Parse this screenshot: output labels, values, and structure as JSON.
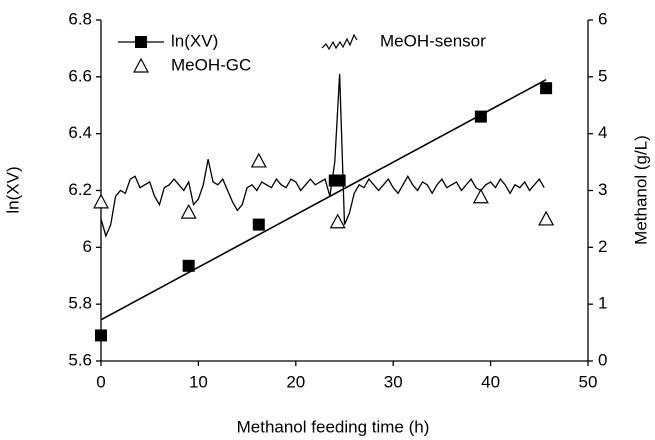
{
  "chart_data": {
    "type": "scatter",
    "x_label": "Methanol feeding time (h)",
    "y_label": "ln(XV)",
    "y2_label": "Methanol (g/L)",
    "xlim": [
      0,
      50
    ],
    "xticks": [
      0,
      10,
      20,
      30,
      40,
      50
    ],
    "ylim": [
      5.6,
      6.8
    ],
    "yticks": [
      5.6,
      5.8,
      6,
      6.2,
      6.4,
      6.6,
      6.8
    ],
    "y2lim": [
      0,
      6
    ],
    "y2ticks": [
      0,
      1,
      2,
      3,
      4,
      5,
      6
    ],
    "series": [
      {
        "name": "ln(XV)",
        "type": "scatter",
        "marker": "square",
        "color": "#000000",
        "x": [
          0,
          9,
          16.2,
          24,
          24.5,
          39,
          45.7
        ],
        "values": [
          5.69,
          5.935,
          6.08,
          6.235,
          6.235,
          6.46,
          6.56
        ]
      },
      {
        "type": "line",
        "color": "#000000",
        "x": [
          0,
          45.7
        ],
        "values": [
          5.745,
          6.59
        ]
      },
      {
        "name": "MeOH-GC",
        "type": "scatter",
        "marker": "triangle",
        "color": "#000000",
        "axis": "y2",
        "x": [
          0,
          9,
          16.2,
          24.3,
          39,
          45.7
        ],
        "values": [
          2.8,
          2.62,
          3.52,
          2.45,
          2.89,
          2.5
        ]
      },
      {
        "name": "MeOH-sensor",
        "type": "line",
        "color": "#000000",
        "axis": "y2",
        "x": [
          0,
          0.5,
          1,
          1.5,
          2,
          2.5,
          3,
          3.5,
          4,
          4.5,
          5,
          5.5,
          6,
          6.5,
          7,
          7.5,
          8,
          8.5,
          9,
          9.5,
          10,
          10.5,
          11,
          11.5,
          12,
          12.5,
          13,
          13.5,
          14,
          14.5,
          15,
          15.5,
          16,
          16.5,
          17,
          17.5,
          18,
          18.5,
          19,
          19.5,
          20,
          20.5,
          21,
          21.5,
          22,
          22.5,
          23,
          23.5,
          24,
          24.5,
          25,
          25.5,
          26,
          26.5,
          27,
          27.5,
          28,
          28.5,
          29,
          29.5,
          30,
          30.5,
          31,
          31.5,
          32,
          32.5,
          33,
          33.5,
          34,
          34.5,
          35,
          35.5,
          36,
          36.5,
          37,
          37.5,
          38,
          38.5,
          39,
          39.5,
          40,
          40.5,
          41,
          41.5,
          42,
          42.5,
          43,
          43.5,
          44,
          44.5,
          45,
          45.5
        ],
        "values": [
          2.5,
          2.2,
          2.4,
          2.9,
          3.0,
          2.95,
          3.2,
          3.25,
          3.05,
          3.1,
          3.15,
          2.9,
          2.75,
          3.05,
          3.1,
          3.2,
          3.1,
          3.0,
          3.15,
          2.75,
          2.85,
          3.1,
          3.55,
          3.15,
          3.1,
          3.2,
          3.0,
          2.8,
          2.65,
          2.75,
          3.05,
          3.1,
          3.0,
          3.15,
          3.1,
          3.05,
          3.2,
          3.1,
          3.05,
          3.2,
          3.15,
          3.0,
          3.1,
          3.2,
          3.1,
          3.15,
          3.2,
          2.9,
          3.5,
          5.05,
          2.4,
          2.6,
          2.95,
          3.1,
          3.05,
          3.2,
          3.1,
          3.0,
          3.1,
          3.2,
          3.05,
          2.95,
          3.1,
          3.25,
          3.1,
          3.0,
          3.15,
          3.1,
          2.95,
          3.1,
          3.2,
          3.05,
          3.1,
          3.15,
          3.0,
          3.1,
          3.2,
          3.05,
          3.0,
          3.1,
          3.15,
          3.05,
          3.2,
          3.1,
          2.95,
          3.1,
          3.05,
          3.15,
          3.0,
          3.1,
          3.2,
          3.05
        ]
      }
    ]
  }
}
